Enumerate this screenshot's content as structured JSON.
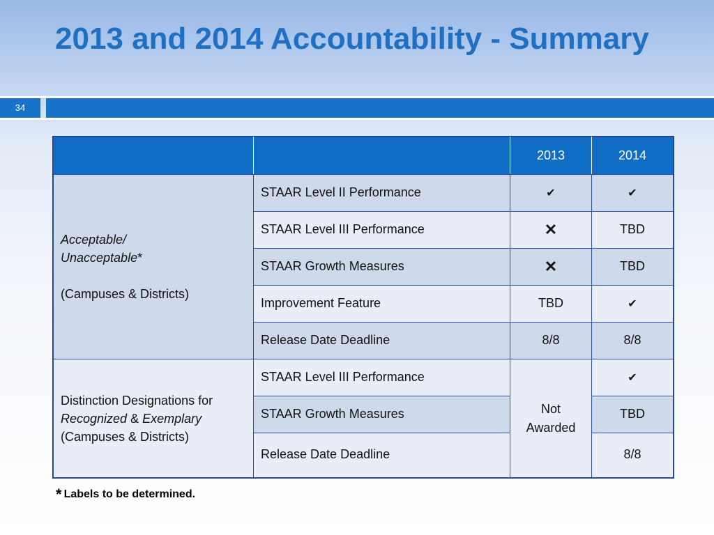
{
  "slide": {
    "title": "2013 and 2014 Accountability - Summary",
    "page_number": "34"
  },
  "table": {
    "headers": [
      "",
      "",
      "2013",
      "2014"
    ],
    "group1": {
      "label_line1": "Acceptable/",
      "label_line2": "Unacceptable",
      "label_asterisk": "*",
      "label_line3": "(Campuses & Districts)",
      "rows": [
        {
          "measure": "STAAR Level II Performance",
          "y2013": "✔",
          "y2014": "✔"
        },
        {
          "measure": "STAAR Level III Performance",
          "y2013": "✕",
          "y2014": "TBD"
        },
        {
          "measure": "STAAR Growth Measures",
          "y2013": "✕",
          "y2014": "TBD"
        },
        {
          "measure": "Improvement Feature",
          "y2013": "TBD",
          "y2014": "✔"
        },
        {
          "measure": "Release Date Deadline",
          "y2013": "8/8",
          "y2014": "8/8"
        }
      ]
    },
    "group2": {
      "label_line1": "Distinction Designations for",
      "label_recognized": "Recognized",
      "label_amp": " & ",
      "label_exemplary": "Exemplary",
      "label_line3": "(Campuses & Districts)",
      "merged_2013_line1": "Not",
      "merged_2013_line2": "Awarded",
      "rows": [
        {
          "measure": "STAAR Level III Performance",
          "y2014": "✔"
        },
        {
          "measure": "STAAR Growth Measures",
          "y2014": "TBD"
        },
        {
          "measure": "Release Date Deadline",
          "y2014": "8/8"
        }
      ]
    }
  },
  "footnote": {
    "star": "*",
    "text": "Labels to be determined."
  },
  "colors": {
    "title": "#1f6fc3",
    "bar": "#1872c9",
    "header": "#0f6dc6",
    "row_dark": "#cfd9ec",
    "row_light": "#e8edf7"
  },
  "icons": {
    "check": "check-icon",
    "cross": "x-icon"
  }
}
